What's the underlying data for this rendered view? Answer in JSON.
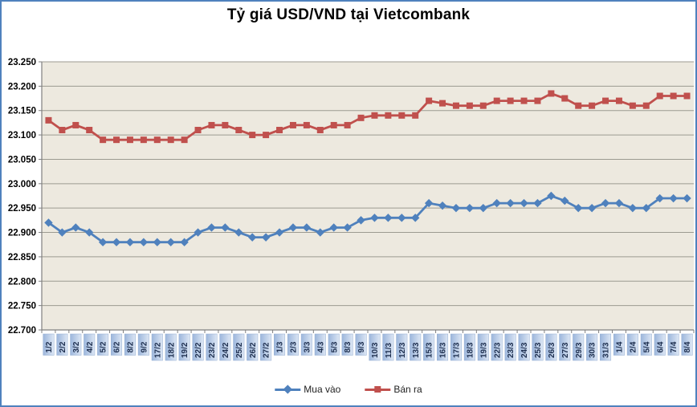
{
  "chart_data": {
    "type": "line",
    "title": "Tỷ giá USD/VND tại Vietcombank",
    "categories": [
      "1/2",
      "2/2",
      "3/2",
      "4/2",
      "5/2",
      "6/2",
      "8/2",
      "9/2",
      "17/2",
      "18/2",
      "19/2",
      "22/2",
      "23/2",
      "24/2",
      "25/2",
      "26/2",
      "27/2",
      "1/3",
      "2/3",
      "3/3",
      "4/3",
      "5/3",
      "8/3",
      "9/3",
      "10/3",
      "11/3",
      "12/3",
      "13/3",
      "15/3",
      "16/3",
      "17/3",
      "18/3",
      "19/3",
      "22/3",
      "23/3",
      "24/3",
      "25/3",
      "26/3",
      "27/3",
      "29/3",
      "30/3",
      "31/3",
      "1/4",
      "2/4",
      "5/4",
      "6/4",
      "7/4",
      "8/4"
    ],
    "series": [
      {
        "name": "Mua vào",
        "marker": "diamond",
        "color": "#4F81BD",
        "values": [
          22920,
          22900,
          22910,
          22900,
          22880,
          22880,
          22880,
          22880,
          22880,
          22880,
          22880,
          22900,
          22910,
          22910,
          22900,
          22890,
          22890,
          22900,
          22910,
          22910,
          22900,
          22910,
          22910,
          22925,
          22930,
          22930,
          22930,
          22930,
          22960,
          22955,
          22950,
          22950,
          22950,
          22960,
          22960,
          22960,
          22960,
          22975,
          22965,
          22950,
          22950,
          22960,
          22960,
          22950,
          22950,
          22970,
          22970,
          22970
        ]
      },
      {
        "name": "Bán ra",
        "marker": "square",
        "color": "#C0504D",
        "values": [
          23130,
          23110,
          23120,
          23110,
          23090,
          23090,
          23090,
          23090,
          23090,
          23090,
          23090,
          23110,
          23120,
          23120,
          23110,
          23100,
          23100,
          23110,
          23120,
          23120,
          23110,
          23120,
          23120,
          23135,
          23140,
          23140,
          23140,
          23140,
          23170,
          23165,
          23160,
          23160,
          23160,
          23170,
          23170,
          23170,
          23170,
          23185,
          23175,
          23160,
          23160,
          23170,
          23170,
          23160,
          23160,
          23180,
          23180,
          23180
        ]
      }
    ],
    "ylim": [
      22700,
      23250
    ],
    "ytick_step": 50,
    "ytick_labels": [
      "23.250",
      "23.200",
      "23.150",
      "23.100",
      "23.050",
      "23.000",
      "22.950",
      "22.900",
      "22.850",
      "22.800",
      "22.750",
      "22.700"
    ],
    "grid": true,
    "legend_position": "bottom",
    "plot_bg": "#EDE9DF",
    "grid_color": "#9C9A90",
    "axis_color": "#808080",
    "border_color": "#4F81BD",
    "xlabel_text_color": "#1F3050",
    "xlabel_chip_colors": [
      "#9CB6DC",
      "#DCE6F4"
    ],
    "ylabel_color": "#000000"
  }
}
